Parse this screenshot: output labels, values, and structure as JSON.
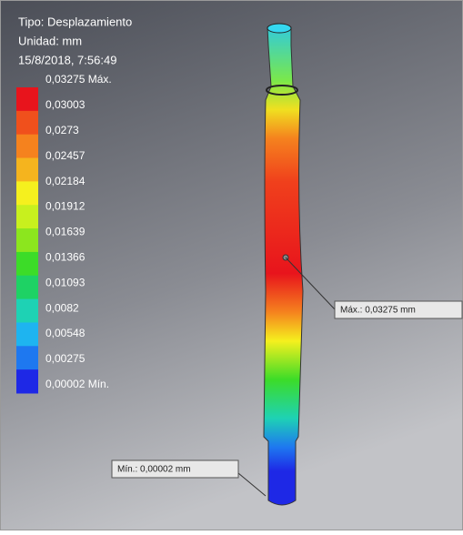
{
  "header": {
    "type_line": "Tipo: Desplazamiento",
    "unit_line": "Unidad: mm",
    "date_line": "15/8/2018, 7:56:49"
  },
  "legend": {
    "labels": [
      "0,03275 Máx.",
      "0,03003",
      "0,0273",
      "0,02457",
      "0,02184",
      "0,01912",
      "0,01639",
      "0,01366",
      "0,01093",
      "0,0082",
      "0,00548",
      "0,00275",
      "0,00002 Mín."
    ],
    "colors": [
      "#e8141c",
      "#f0501c",
      "#f5821e",
      "#f5b41e",
      "#f5f01e",
      "#c8f01e",
      "#8ce61e",
      "#3cdc28",
      "#1ed264",
      "#1ed2b4",
      "#1eb4f0",
      "#1e78f0",
      "#1e28e6"
    ]
  },
  "callouts": {
    "max": "Máx.: 0,03275 mm",
    "min": "Mín.: 0,00002 mm"
  }
}
